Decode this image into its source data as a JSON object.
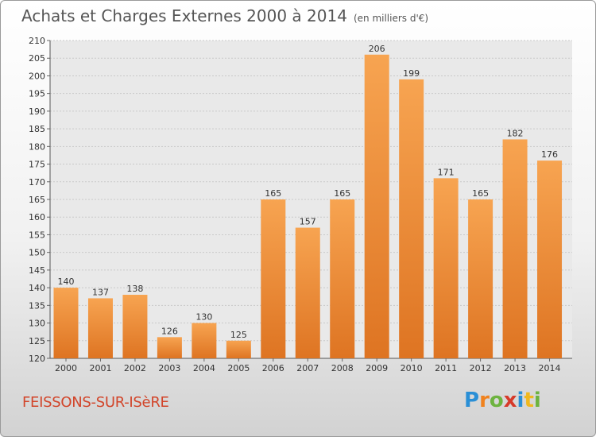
{
  "chart_data": {
    "type": "bar",
    "title": "Achats et Charges Externes 2000 à 2014",
    "subtitle": "(en milliers d'€)",
    "categories": [
      "2000",
      "2001",
      "2002",
      "2003",
      "2004",
      "2005",
      "2006",
      "2007",
      "2008",
      "2009",
      "2010",
      "2011",
      "2012",
      "2013",
      "2014"
    ],
    "values": [
      140,
      137,
      138,
      126,
      130,
      125,
      165,
      157,
      165,
      206,
      199,
      171,
      165,
      182,
      176
    ],
    "ylim": [
      120,
      210
    ],
    "yticks": [
      120,
      125,
      130,
      135,
      140,
      145,
      150,
      155,
      160,
      165,
      170,
      175,
      180,
      185,
      190,
      195,
      200,
      205,
      210
    ],
    "grid": true,
    "bar_color": "#f0923c",
    "xlabel": "",
    "ylabel": ""
  },
  "footer": {
    "place": "FEISSONS-SUR-ISèRE",
    "brand_letters": [
      "P",
      "r",
      "o",
      "x",
      "i",
      "t",
      "i"
    ],
    "brand_colors": [
      "#2a8fd6",
      "#f0821e",
      "#6db33f",
      "#d63a2a",
      "#2a8fd6",
      "#f0b81e",
      "#6db33f"
    ]
  }
}
